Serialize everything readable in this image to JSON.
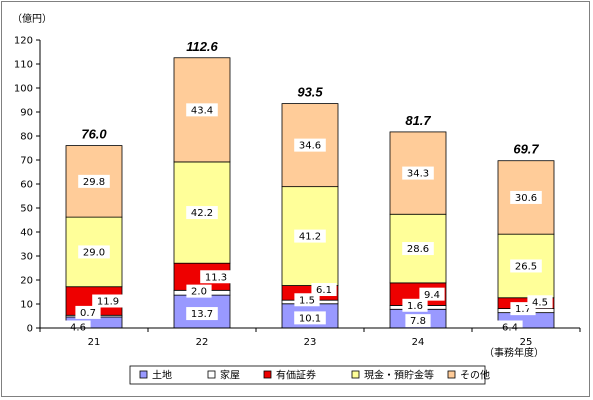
{
  "chart_data": {
    "type": "bar",
    "stacked": true,
    "unit_label": "（億円）",
    "x_suffix_label": "（事務年度）",
    "categories": [
      "21",
      "22",
      "23",
      "24",
      "25"
    ],
    "ylim": [
      0,
      120
    ],
    "yticks": [
      "0",
      "10",
      "20",
      "30",
      "40",
      "50",
      "60",
      "70",
      "80",
      "90",
      "100",
      "110",
      "120"
    ],
    "grid": false,
    "legend_position": "bottom",
    "series": [
      {
        "name": "土地",
        "color": "#9999ff",
        "values": [
          4.6,
          13.7,
          10.1,
          7.8,
          6.4
        ],
        "labels": [
          "4.6",
          "13.7",
          "10.1",
          "7.8",
          "6.4"
        ]
      },
      {
        "name": "家屋",
        "color": "#ffffff",
        "values": [
          0.7,
          2.0,
          1.5,
          1.6,
          1.7
        ],
        "labels": [
          "0.7",
          "2.0",
          "1.5",
          "1.6",
          "1.7"
        ]
      },
      {
        "name": "有価証券",
        "color": "#ee0000",
        "values": [
          11.9,
          11.3,
          6.1,
          9.4,
          4.5
        ],
        "labels": [
          "11.9",
          "11.3",
          "6.1",
          "9.4",
          "4.5"
        ]
      },
      {
        "name": "現金・預貯金等",
        "color": "#ffff99",
        "values": [
          29.0,
          42.2,
          41.2,
          28.6,
          26.5
        ],
        "labels": [
          "29.0",
          "42.2",
          "41.2",
          "28.6",
          "26.5"
        ]
      },
      {
        "name": "その他",
        "color": "#ffcc99",
        "values": [
          29.8,
          43.4,
          34.6,
          34.3,
          30.6
        ],
        "labels": [
          "29.8",
          "43.4",
          "34.6",
          "34.3",
          "30.6"
        ]
      }
    ],
    "totals": [
      "76.0",
      "112.6",
      "93.5",
      "81.7",
      "69.7"
    ]
  }
}
